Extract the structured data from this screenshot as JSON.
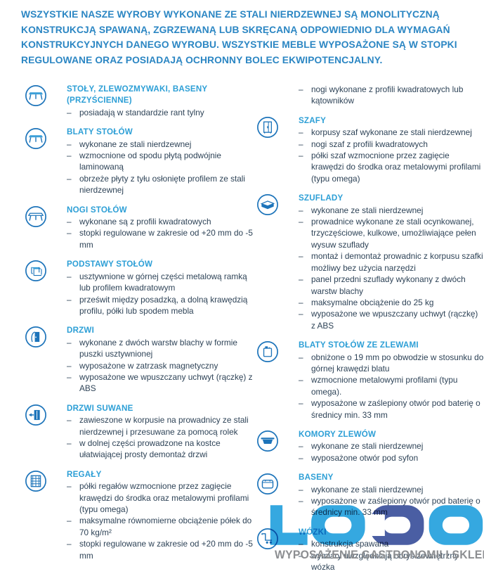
{
  "intro": "WSZYSTKIE NASZE WYROBY  WYKONANE ZE STALI NIERDZEWNEJ SĄ MONOLITYCZNĄ KONSTRUKCJĄ SPAWANĄ, ZGRZEWANĄ LUB SKRĘCANĄ ODPOWIEDNIO DLA WYMAGAŃ KONSTRUKCYJNYCH DANEGO WYROBU. WSZYSTKIE MEBLE WYPOSAŻONE SĄ W STOPKI REGULOWANE ORAZ POSIADAJĄ OCHRONNY BOLEC EKWIPOTENCJALNY.",
  "columns": {
    "left": [
      {
        "icon": "table-icon",
        "title": "STOŁY, ZLEWOZMYWAKI, BASENY (PRZYŚCIENNE)",
        "bullets": [
          "posiadają w standardzie rant tylny"
        ]
      },
      {
        "icon": "table-icon",
        "title": "BLATY STOŁÓW",
        "bullets": [
          "wykonane ze stali nierdzewnej",
          "wzmocnione od spodu płytą podwójnie laminowaną",
          "obrzeże płyty z tyłu osłonięte profilem ze stali nierdzewnej"
        ]
      },
      {
        "icon": "table-legs-icon",
        "title": "NOGI STOŁÓW",
        "bullets": [
          "wykonane są z profili kwadratowych",
          "stopki regulowane w zakresie od +20 mm do -5 mm"
        ]
      },
      {
        "icon": "table-frame-icon",
        "title": "PODSTAWY STOŁÓW",
        "bullets": [
          "usztywnione w górnej części  metalową ramką lub profilem kwadratowym",
          "prześwit między posadzką, a dolną krawędzią profilu, półki lub spodem mebla"
        ]
      },
      {
        "icon": "door-icon",
        "title": "DRZWI",
        "bullets": [
          "wykonane z dwóch warstw blachy w formie puszki usztywnionej",
          "wyposażone w zatrzask magnetyczny",
          "wyposażone we wpuszczany uchwyt (rączkę) z ABS"
        ]
      },
      {
        "icon": "sliding-door-icon",
        "title": "DRZWI SUWANE",
        "bullets": [
          "zawieszone w korpusie na prowadnicy ze stali nierdzewnej i przesuwane za pomocą rolek",
          "w dolnej części prowadzone na kostce ułatwiającej prosty demontaż drzwi"
        ]
      },
      {
        "icon": "shelving-icon",
        "title": "REGAŁY",
        "bullets": [
          "półki regałów wzmocnione przez zagięcie krawędzi do środka oraz metalowymi profilami (typu omega)",
          "maksymalne równomierne obciążenie półek  do 70 kg/m²",
          "stopki regulowane w zakresie od +20 mm do -5 mm"
        ]
      }
    ],
    "right": [
      {
        "icon": null,
        "title": null,
        "bullets": [
          "nogi wykonane z profili kwadratowych lub kątowników"
        ]
      },
      {
        "icon": "cabinet-icon",
        "title": "SZAFY",
        "bullets": [
          "korpusy szaf wykonane ze stali nierdzewnej",
          "nogi szaf  z profili kwadratowych",
          "półki szaf wzmocnione przez zagięcie krawędzi do środka oraz metalowymi profilami (typu omega)"
        ]
      },
      {
        "icon": "drawer-icon",
        "title": "SZUFLADY",
        "bullets": [
          "wykonane ze stali nierdzewnej",
          "prowadnice wykonane ze stali ocynkowanej, trzyczęściowe, kulkowe, umożliwiające pełen wysuw szuflady",
          "montaż i demontaż prowadnic z korpusu szafki możliwy bez użycia narzędzi",
          "panel przedni szuflady wykonany z dwóch warstw blachy",
          "maksymalne obciążenie do 25 kg",
          "wyposażone we wpuszczany uchwyt (rączkę) z ABS"
        ]
      },
      {
        "icon": "sink-worktop-icon",
        "title": "BLATY STOŁÓW ZE ZLEWAMI",
        "bullets": [
          "obniżone o 19 mm po obwodzie w stosunku do górnej krawędzi blatu",
          "wzmocnione  metalowymi profilami (typu omega).",
          "wyposażone w zaślepiony otwór pod baterię o średnicy min. 33 mm"
        ]
      },
      {
        "icon": "sink-bowl-icon",
        "title": "KOMORY ZLEWÓW",
        "bullets": [
          "wykonane ze stali nierdzewnej",
          "wyposażone otwór pod syfon"
        ]
      },
      {
        "icon": "basin-icon",
        "title": "BASENY",
        "bullets": [
          "wykonane ze stali nierdzewnej",
          "wyposażone w zaślepiony otwór pod baterię o średnicy min. 33 mm"
        ]
      },
      {
        "icon": "trolley-icon",
        "title": "WÓZKI",
        "bullets": [
          "konstrukcja spawana",
          "wymiary uwzględniają obrys zewnętrzny wózka"
        ]
      }
    ]
  },
  "logo": {
    "text": "LODO",
    "tagline": "WYPOSAŻENIE GASTRONOMII I SKLEPÓW"
  },
  "colors": {
    "intro": "#2b86c3",
    "heading": "#2d9fd6",
    "body": "#2e4357",
    "icon_stroke": "#1d74ba",
    "icon_fill": "#3b9fd8",
    "icon_fill_dark": "#1d74ba",
    "logo_light": "#35a8e0",
    "logo_dark": "#4a5ea3",
    "tagline": "#8c8e91"
  }
}
